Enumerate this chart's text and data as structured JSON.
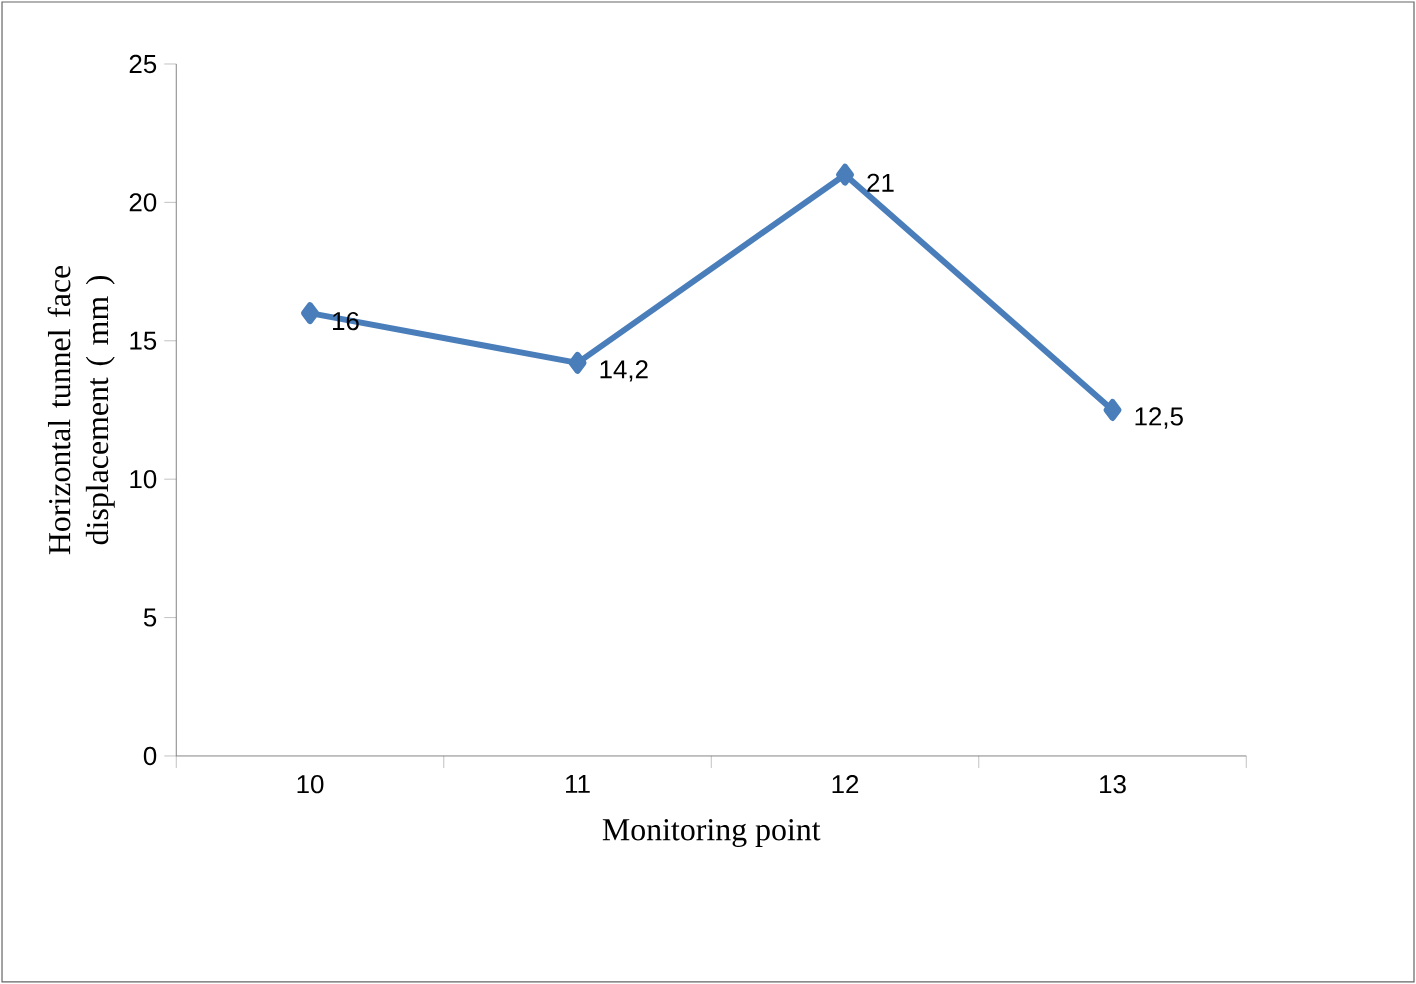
{
  "chart_data": {
    "type": "line",
    "xlabel": "Monitoring point",
    "ylabel": "Horizontal tunnel face displacement ( mm )",
    "categories": [
      "10",
      "11",
      "12",
      "13"
    ],
    "values": [
      16,
      14.2,
      21,
      12.5
    ],
    "value_labels": [
      "16",
      "14,2",
      "21",
      "12,5"
    ],
    "color": "#4a7ebb",
    "marker": "diamond",
    "line_style": "solid",
    "ylim": [
      0,
      25
    ],
    "yticks": [
      0,
      5,
      10,
      15,
      20,
      25
    ],
    "grid": false
  }
}
